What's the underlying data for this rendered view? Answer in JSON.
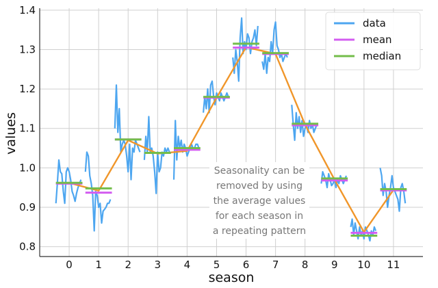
{
  "chart_data": {
    "type": "line",
    "xlabel": "season",
    "ylabel": "values",
    "xlim": [
      -1,
      12
    ],
    "ylim": [
      0.775,
      1.405
    ],
    "grid": true,
    "legend_position": "top-right",
    "x_ticks": [
      "0",
      "1",
      "2",
      "3",
      "4",
      "5",
      "6",
      "7",
      "8",
      "9",
      "10",
      "11"
    ],
    "y_ticks": [
      "0.8",
      "0.9",
      "1.0",
      "1.1",
      "1.2",
      "1.3",
      "1.4"
    ],
    "annotation": "Seasonality can be removed by using the average values for each season in a repeating pattern",
    "annotation_lines": [
      "Seasonality can be",
      "removed by using",
      "the average values",
      "for each season in",
      "a repeating pattern"
    ],
    "series": [
      {
        "name": "data",
        "color": "#4da6f0",
        "segments": [
          {
            "season": 0,
            "x": [
              -0.45,
              -0.4,
              -0.35,
              -0.3,
              -0.25,
              -0.2,
              -0.15,
              -0.1,
              -0.05,
              0.0,
              0.05,
              0.1,
              0.15,
              0.2,
              0.25,
              0.3,
              0.35,
              0.4
            ],
            "y": [
              0.91,
              0.96,
              1.02,
              0.99,
              0.985,
              0.94,
              0.91,
              0.99,
              1.0,
              0.99,
              0.97,
              0.94,
              0.93,
              0.915,
              0.935,
              0.95,
              0.96,
              0.97
            ]
          },
          {
            "season": 1,
            "x": [
              -0.45,
              -0.4,
              -0.35,
              -0.3,
              -0.25,
              -0.2,
              -0.15,
              -0.1,
              -0.05,
              0.0,
              0.05,
              0.1,
              0.15,
              0.2,
              0.25,
              0.3,
              0.35,
              0.4
            ],
            "y": [
              0.99,
              1.04,
              1.03,
              0.98,
              0.96,
              0.93,
              0.84,
              0.94,
              0.93,
              0.9,
              0.91,
              0.86,
              0.89,
              0.895,
              0.9,
              0.91,
              0.91,
              0.92
            ]
          },
          {
            "season": 2,
            "x": [
              -0.45,
              -0.4,
              -0.35,
              -0.3,
              -0.25,
              -0.2,
              -0.15,
              -0.1,
              -0.05,
              0.0,
              0.05,
              0.1,
              0.15,
              0.2,
              0.25,
              0.3,
              0.35,
              0.4
            ],
            "y": [
              1.1,
              1.21,
              1.09,
              1.15,
              1.04,
              1.06,
              1.07,
              1.06,
              1.03,
              0.99,
              1.06,
              0.97,
              1.05,
              1.04,
              1.07,
              1.06,
              1.05,
              1.04
            ]
          },
          {
            "season": 3,
            "x": [
              -0.45,
              -0.4,
              -0.35,
              -0.3,
              -0.25,
              -0.2,
              -0.15,
              -0.1,
              -0.05,
              0.0,
              0.05,
              0.1,
              0.15,
              0.2,
              0.25,
              0.3,
              0.35,
              0.4
            ],
            "y": [
              1.02,
              1.08,
              1.04,
              1.13,
              1.04,
              1.05,
              1.03,
              0.99,
              0.935,
              1.04,
              0.99,
              1.0,
              1.04,
              1.03,
              1.05,
              1.04,
              1.05,
              1.04
            ]
          },
          {
            "season": 4,
            "x": [
              -0.45,
              -0.4,
              -0.35,
              -0.3,
              -0.25,
              -0.2,
              -0.15,
              -0.1,
              -0.05,
              0.0,
              0.05,
              0.1,
              0.15,
              0.2,
              0.25,
              0.3,
              0.35,
              0.4
            ],
            "y": [
              0.97,
              1.12,
              1.02,
              1.08,
              1.05,
              1.07,
              1.04,
              1.06,
              1.05,
              1.03,
              1.04,
              1.05,
              1.06,
              1.05,
              1.05,
              1.06,
              1.06,
              1.05
            ]
          },
          {
            "season": 5,
            "x": [
              -0.45,
              -0.4,
              -0.35,
              -0.3,
              -0.25,
              -0.2,
              -0.15,
              -0.1,
              -0.05,
              0.0,
              0.05,
              0.1,
              0.15,
              0.2,
              0.25,
              0.3,
              0.35,
              0.4
            ],
            "y": [
              1.14,
              1.18,
              1.15,
              1.2,
              1.14,
              1.21,
              1.22,
              1.18,
              1.16,
              1.19,
              1.18,
              1.17,
              1.19,
              1.18,
              1.17,
              1.18,
              1.19,
              1.18
            ]
          },
          {
            "season": 6,
            "x": [
              -0.45,
              -0.4,
              -0.35,
              -0.3,
              -0.25,
              -0.2,
              -0.15,
              -0.1,
              -0.05,
              0.0,
              0.05,
              0.1,
              0.15,
              0.2,
              0.25,
              0.3,
              0.35,
              0.4
            ],
            "y": [
              1.28,
              1.24,
              1.3,
              1.27,
              1.22,
              1.33,
              1.38,
              1.29,
              1.32,
              1.3,
              1.34,
              1.33,
              1.29,
              1.32,
              1.33,
              1.35,
              1.31,
              1.36
            ]
          },
          {
            "season": 7,
            "x": [
              -0.45,
              -0.4,
              -0.35,
              -0.3,
              -0.25,
              -0.2,
              -0.15,
              -0.1,
              -0.05,
              0.0,
              0.05,
              0.1,
              0.15,
              0.2,
              0.25,
              0.3,
              0.35,
              0.4
            ],
            "y": [
              1.27,
              1.25,
              1.29,
              1.24,
              1.28,
              1.27,
              1.32,
              1.29,
              1.35,
              1.37,
              1.31,
              1.3,
              1.28,
              1.29,
              1.27,
              1.28,
              1.29,
              1.28
            ]
          },
          {
            "season": 8,
            "x": [
              -0.45,
              -0.4,
              -0.35,
              -0.3,
              -0.25,
              -0.2,
              -0.15,
              -0.1,
              -0.05,
              0.0,
              0.05,
              0.1,
              0.15,
              0.2,
              0.25,
              0.3,
              0.35,
              0.4
            ],
            "y": [
              1.16,
              1.11,
              1.07,
              1.14,
              1.1,
              1.13,
              1.09,
              1.12,
              1.08,
              1.1,
              1.11,
              1.09,
              1.12,
              1.1,
              1.11,
              1.09,
              1.1,
              1.11
            ]
          },
          {
            "season": 9,
            "x": [
              -0.45,
              -0.4,
              -0.35,
              -0.3,
              -0.25,
              -0.2,
              -0.15,
              -0.1,
              -0.05,
              0.0,
              0.05,
              0.1,
              0.15,
              0.2,
              0.25,
              0.3,
              0.35,
              0.4
            ],
            "y": [
              0.96,
              0.99,
              0.98,
              0.97,
              0.95,
              0.985,
              0.97,
              0.955,
              0.96,
              0.97,
              0.95,
              0.97,
              0.96,
              0.98,
              0.97,
              0.96,
              0.97,
              0.98
            ]
          },
          {
            "season": 10,
            "x": [
              -0.45,
              -0.4,
              -0.35,
              -0.3,
              -0.25,
              -0.2,
              -0.15,
              -0.1,
              -0.05,
              0.0,
              0.05,
              0.1,
              0.15,
              0.2,
              0.25,
              0.3,
              0.35,
              0.4
            ],
            "y": [
              0.85,
              0.87,
              0.83,
              0.86,
              0.84,
              0.82,
              0.85,
              0.83,
              0.84,
              0.82,
              0.85,
              0.84,
              0.83,
              0.815,
              0.84,
              0.83,
              0.85,
              0.84
            ]
          },
          {
            "season": 11,
            "x": [
              -0.45,
              -0.4,
              -0.35,
              -0.3,
              -0.25,
              -0.2,
              -0.15,
              -0.1,
              -0.05,
              0.0,
              0.05,
              0.1,
              0.15,
              0.2,
              0.25,
              0.3,
              0.35,
              0.4
            ],
            "y": [
              1.0,
              0.98,
              0.93,
              0.96,
              0.94,
              0.9,
              0.93,
              0.95,
              0.98,
              0.95,
              0.94,
              0.93,
              0.92,
              0.89,
              0.95,
              0.96,
              0.94,
              0.91
            ]
          }
        ]
      },
      {
        "name": "mean",
        "color": "#d35cf0",
        "values": [
          0.96,
          0.937,
          1.072,
          1.038,
          1.046,
          1.178,
          1.305,
          1.289,
          1.108,
          0.968,
          0.835,
          0.943
        ]
      },
      {
        "name": "median",
        "color": "#73bd4a",
        "values": [
          0.962,
          0.948,
          1.072,
          1.038,
          1.05,
          1.18,
          1.315,
          1.291,
          1.112,
          0.973,
          0.828,
          0.946
        ]
      }
    ],
    "trend_line": {
      "color": "#f0962a",
      "values": [
        0.962,
        0.942,
        1.07,
        1.036,
        1.043,
        1.178,
        1.306,
        1.289,
        1.11,
        0.97,
        0.837,
        0.944
      ]
    }
  }
}
